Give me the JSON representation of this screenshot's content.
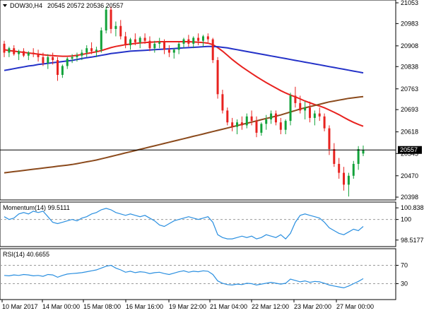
{
  "chart_data": [
    {
      "type": "candlestick",
      "panel": "main",
      "header": {
        "symbol_label": "DOW30,H4",
        "ohlc_text": "20545 20572 20536 20557"
      },
      "y_ticks": [
        "21053",
        "20983",
        "20908",
        "20838",
        "20763",
        "20693",
        "20618",
        "20545",
        "20470",
        "20398"
      ],
      "ylim": [
        20398,
        21053
      ],
      "current_price": 20557,
      "current_price_label": "20557",
      "x_ticks": [
        "10 Mar 2017",
        "14 Mar 00:00",
        "15 Mar 08:00",
        "16 Mar 16:00",
        "19 Mar 22:00",
        "21 Mar 04:00",
        "22 Mar 12:00",
        "23 Mar 20:00",
        "27 Mar 00:00"
      ],
      "candles": [
        [
          20915,
          20925,
          20870,
          20885
        ],
        [
          20885,
          20905,
          20870,
          20900
        ],
        [
          20900,
          20910,
          20875,
          20880
        ],
        [
          20880,
          20895,
          20860,
          20890
        ],
        [
          20890,
          20900,
          20870,
          20875
        ],
        [
          20875,
          20890,
          20860,
          20885
        ],
        [
          20885,
          20900,
          20870,
          20880
        ],
        [
          20880,
          20895,
          20855,
          20870
        ],
        [
          20870,
          20885,
          20840,
          20850
        ],
        [
          20850,
          20880,
          20830,
          20870
        ],
        [
          20870,
          20885,
          20845,
          20860
        ],
        [
          20860,
          20870,
          20790,
          20810
        ],
        [
          20810,
          20845,
          20800,
          20840
        ],
        [
          20840,
          20870,
          20830,
          20865
        ],
        [
          20865,
          20880,
          20850,
          20870
        ],
        [
          20870,
          20885,
          20855,
          20875
        ],
        [
          20875,
          20895,
          20860,
          20885
        ],
        [
          20885,
          20910,
          20870,
          20900
        ],
        [
          20900,
          20920,
          20880,
          20890
        ],
        [
          20890,
          20905,
          20870,
          20895
        ],
        [
          20895,
          20970,
          20885,
          20960
        ],
        [
          20960,
          21040,
          20950,
          21030
        ],
        [
          21030,
          21040,
          20950,
          20965
        ],
        [
          20965,
          20990,
          20940,
          20975
        ],
        [
          20975,
          20995,
          20930,
          20940
        ],
        [
          20940,
          20955,
          20900,
          20910
        ],
        [
          20910,
          20935,
          20895,
          20930
        ],
        [
          20930,
          20950,
          20910,
          20920
        ],
        [
          20920,
          20940,
          20900,
          20935
        ],
        [
          20935,
          20950,
          20915,
          20925
        ],
        [
          20925,
          20940,
          20890,
          20900
        ],
        [
          20900,
          20925,
          20885,
          20915
        ],
        [
          20915,
          20935,
          20900,
          20920
        ],
        [
          20920,
          20930,
          20880,
          20895
        ],
        [
          20895,
          20910,
          20870,
          20885
        ],
        [
          20885,
          20900,
          20865,
          20895
        ],
        [
          20895,
          20920,
          20880,
          20915
        ],
        [
          20915,
          20935,
          20900,
          20930
        ],
        [
          20930,
          20945,
          20905,
          20915
        ],
        [
          20915,
          20940,
          20900,
          20935
        ],
        [
          20935,
          20950,
          20910,
          20925
        ],
        [
          20925,
          20945,
          20905,
          20940
        ],
        [
          20940,
          20950,
          20920,
          20930
        ],
        [
          20930,
          20935,
          20850,
          20860
        ],
        [
          20860,
          20870,
          20730,
          20745
        ],
        [
          20745,
          20760,
          20680,
          20690
        ],
        [
          20690,
          20700,
          20640,
          20650
        ],
        [
          20650,
          20665,
          20620,
          20635
        ],
        [
          20635,
          20660,
          20610,
          20650
        ],
        [
          20650,
          20670,
          20625,
          20640
        ],
        [
          20640,
          20680,
          20630,
          20670
        ],
        [
          20670,
          20690,
          20640,
          20655
        ],
        [
          20655,
          20670,
          20600,
          20615
        ],
        [
          20615,
          20650,
          20605,
          20645
        ],
        [
          20645,
          20675,
          20625,
          20660
        ],
        [
          20660,
          20690,
          20645,
          20680
        ],
        [
          20680,
          20690,
          20640,
          20650
        ],
        [
          20650,
          20665,
          20610,
          20625
        ],
        [
          20625,
          20660,
          20610,
          20655
        ],
        [
          20655,
          20750,
          20640,
          20740
        ],
        [
          20740,
          20770,
          20700,
          20715
        ],
        [
          20715,
          20740,
          20680,
          20690
        ],
        [
          20690,
          20720,
          20660,
          20700
        ],
        [
          20700,
          20720,
          20650,
          20665
        ],
        [
          20665,
          20690,
          20640,
          20680
        ],
        [
          20680,
          20700,
          20655,
          20670
        ],
        [
          20670,
          20680,
          20620,
          20630
        ],
        [
          20630,
          20640,
          20540,
          20560
        ],
        [
          20560,
          20580,
          20500,
          20510
        ],
        [
          20510,
          20530,
          20460,
          20480
        ],
        [
          20480,
          20500,
          20420,
          20440
        ],
        [
          20440,
          20480,
          20400,
          20470
        ],
        [
          20470,
          20520,
          20460,
          20510
        ],
        [
          20510,
          20570,
          20490,
          20560
        ],
        [
          20545,
          20572,
          20536,
          20557
        ]
      ],
      "moving_averages": [
        {
          "color": "#e8221f",
          "values": [
            20895,
            20892,
            20890,
            20888,
            20886,
            20884,
            20882,
            20880,
            20878,
            20876,
            20875,
            20874,
            20873,
            20873,
            20874,
            20876,
            20879,
            20882,
            20885,
            20888,
            20892,
            20897,
            20902,
            20906,
            20909,
            20912,
            20914,
            20916,
            20918,
            20919,
            20920,
            20921,
            20922,
            20922,
            20922,
            20922,
            20922,
            20922,
            20922,
            20921,
            20920,
            20919,
            20917,
            20912,
            20902,
            20890,
            20876,
            20862,
            20849,
            20837,
            20826,
            20815,
            20804,
            20794,
            20784,
            20775,
            20766,
            20757,
            20749,
            20742,
            20736,
            20729,
            20722,
            20716,
            20710,
            20705,
            20699,
            20692,
            20684,
            20676,
            20667,
            20658,
            20650,
            20643,
            20637
          ]
        },
        {
          "color": "#2432c8",
          "values": [
            20825,
            20828,
            20831,
            20834,
            20837,
            20840,
            20842,
            20845,
            20847,
            20849,
            20851,
            20853,
            20855,
            20857,
            20859,
            20862,
            20865,
            20868,
            20870,
            20873,
            20876,
            20879,
            20882,
            20884,
            20886,
            20888,
            20890,
            20891,
            20892,
            20893,
            20894,
            20895,
            20896,
            20897,
            20898,
            20899,
            20900,
            20901,
            20902,
            20903,
            20904,
            20905,
            20906,
            20906,
            20905,
            20903,
            20901,
            20898,
            20895,
            20892,
            20889,
            20886,
            20883,
            20880,
            20877,
            20874,
            20871,
            20868,
            20865,
            20862,
            20859,
            20856,
            20853,
            20850,
            20847,
            20844,
            20841,
            20838,
            20835,
            20832,
            20829,
            20826,
            20823,
            20820,
            20817
          ]
        },
        {
          "color": "#8b4a1c",
          "values": [
            20480,
            20482,
            20484,
            20486,
            20488,
            20490,
            20492,
            20494,
            20496,
            20498,
            20500,
            20502,
            20504,
            20506,
            20508,
            20511,
            20514,
            20517,
            20520,
            20523,
            20527,
            20531,
            20535,
            20539,
            20543,
            20547,
            20551,
            20555,
            20559,
            20563,
            20567,
            20571,
            20575,
            20579,
            20583,
            20587,
            20591,
            20595,
            20599,
            20603,
            20607,
            20611,
            20615,
            20619,
            20623,
            20627,
            20631,
            20635,
            20639,
            20643,
            20647,
            20651,
            20655,
            20659,
            20663,
            20667,
            20671,
            20675,
            20680,
            20685,
            20690,
            20695,
            20699,
            20703,
            20707,
            20711,
            20715,
            20719,
            20722,
            20725,
            20728,
            20731,
            20733,
            20735,
            20737
          ]
        }
      ]
    },
    {
      "type": "line",
      "panel": "momentum",
      "label": "Momentum(14) 99.5111",
      "y_ticks": [
        "100.8386",
        "100",
        "98.5177"
      ],
      "ylim": [
        98.2,
        101.0
      ],
      "reference_level": 100,
      "series": [
        {
          "color": "#2a8fe0",
          "values": [
            100.2,
            100.0,
            100.1,
            100.4,
            100.5,
            100.4,
            100.6,
            100.5,
            100.6,
            100.2,
            99.8,
            99.7,
            99.8,
            99.9,
            100.0,
            99.9,
            100.1,
            100.2,
            100.4,
            100.5,
            100.7,
            100.8,
            100.7,
            100.5,
            100.4,
            100.3,
            100.4,
            100.3,
            100.2,
            100.3,
            100.1,
            99.9,
            99.6,
            99.5,
            99.7,
            99.9,
            100.0,
            100.1,
            100.2,
            100.1,
            100.0,
            100.1,
            100.2,
            99.8,
            98.9,
            98.7,
            98.6,
            98.6,
            98.7,
            98.8,
            98.7,
            98.8,
            98.6,
            98.7,
            98.9,
            98.8,
            98.7,
            98.9,
            98.6,
            99.0,
            99.8,
            100.3,
            100.4,
            100.3,
            100.2,
            100.1,
            99.8,
            99.4,
            99.2,
            99.0,
            98.9,
            99.1,
            99.3,
            99.2,
            99.5
          ]
        }
      ]
    },
    {
      "type": "line",
      "panel": "rsi",
      "label": "RSI(14) 40.6655",
      "y_ticks": [
        "70",
        "30"
      ],
      "ylim": [
        0,
        100
      ],
      "levels": [
        70,
        30
      ],
      "series": [
        {
          "color": "#2a8fe0",
          "values": [
            48,
            47,
            49,
            48,
            50,
            49,
            47,
            48,
            46,
            50,
            49,
            44,
            48,
            51,
            52,
            53,
            54,
            56,
            58,
            60,
            64,
            68,
            70,
            64,
            60,
            55,
            57,
            54,
            56,
            55,
            52,
            54,
            55,
            52,
            50,
            53,
            56,
            58,
            55,
            57,
            56,
            58,
            57,
            50,
            36,
            31,
            28,
            27,
            29,
            28,
            31,
            30,
            27,
            29,
            31,
            33,
            31,
            29,
            31,
            40,
            37,
            34,
            36,
            33,
            35,
            34,
            31,
            27,
            25,
            23,
            21,
            25,
            30,
            35,
            41
          ]
        }
      ]
    }
  ]
}
